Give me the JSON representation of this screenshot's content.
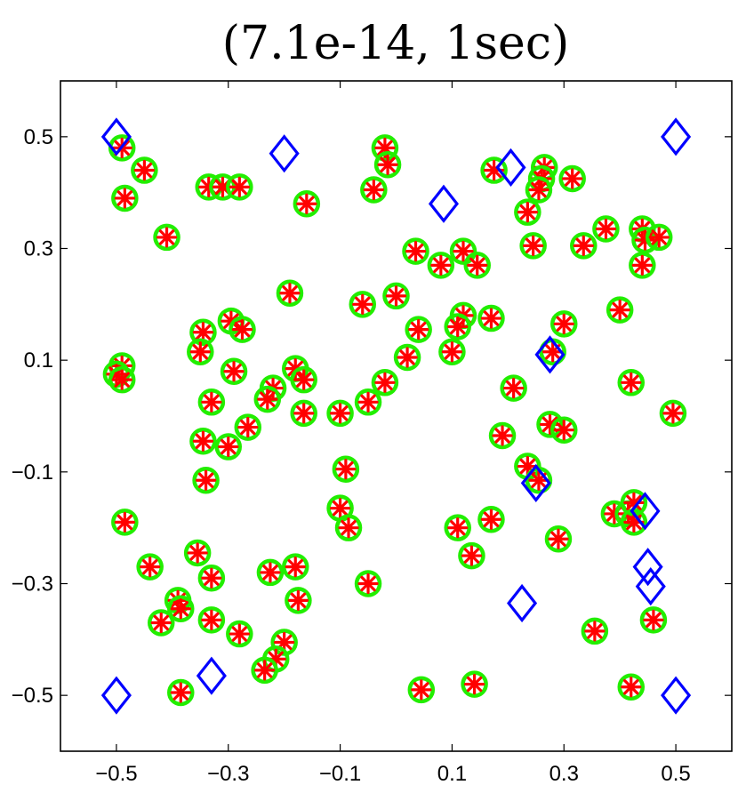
{
  "chart_data": {
    "type": "scatter",
    "title": "(7.1e-14, 1sec)",
    "xlabel": "",
    "ylabel": "",
    "xlim": [
      -0.6,
      0.6
    ],
    "ylim": [
      -0.6,
      0.6
    ],
    "xticks": [
      -0.5,
      -0.3,
      -0.1,
      0.1,
      0.3,
      0.5
    ],
    "yticks": [
      -0.5,
      -0.3,
      -0.1,
      0.1,
      0.3,
      0.5
    ],
    "xtick_labels": [
      "−0.5",
      "−0.3",
      "−0.1",
      "0.1",
      "0.3",
      "0.5"
    ],
    "ytick_labels": [
      "−0.5",
      "−0.3",
      "−0.1",
      "0.1",
      "0.3",
      "0.5"
    ],
    "grid": false,
    "colors": {
      "circle": "#22ee00",
      "star": "#ff0000",
      "diamond": "#0000ff"
    },
    "series": [
      {
        "marker": "diamond",
        "color": "#0000ff",
        "points": [
          [
            -0.5,
            0.5
          ],
          [
            -0.2,
            0.47
          ],
          [
            0.085,
            0.38
          ],
          [
            0.205,
            0.445
          ],
          [
            0.5,
            0.5
          ],
          [
            0.275,
            0.11
          ],
          [
            0.25,
            -0.12
          ],
          [
            0.445,
            -0.17
          ],
          [
            0.45,
            -0.27
          ],
          [
            0.455,
            -0.305
          ],
          [
            0.225,
            -0.335
          ],
          [
            -0.5,
            -0.5
          ],
          [
            -0.33,
            -0.465
          ],
          [
            0.5,
            -0.5
          ]
        ]
      },
      {
        "marker": "circle-star",
        "color": "#ff0000",
        "points": [
          [
            -0.49,
            0.48
          ],
          [
            -0.45,
            0.44
          ],
          [
            -0.485,
            0.39
          ],
          [
            -0.41,
            0.32
          ],
          [
            -0.335,
            0.41
          ],
          [
            -0.31,
            0.41
          ],
          [
            -0.28,
            0.41
          ],
          [
            -0.16,
            0.38
          ],
          [
            -0.02,
            0.48
          ],
          [
            -0.015,
            0.45
          ],
          [
            -0.04,
            0.405
          ],
          [
            0.175,
            0.44
          ],
          [
            0.265,
            0.445
          ],
          [
            0.26,
            0.425
          ],
          [
            0.255,
            0.405
          ],
          [
            0.315,
            0.425
          ],
          [
            0.235,
            0.365
          ],
          [
            0.245,
            0.305
          ],
          [
            0.335,
            0.305
          ],
          [
            0.375,
            0.335
          ],
          [
            0.44,
            0.335
          ],
          [
            0.445,
            0.315
          ],
          [
            0.47,
            0.32
          ],
          [
            0.44,
            0.27
          ],
          [
            0.08,
            0.27
          ],
          [
            0.035,
            0.295
          ],
          [
            0.12,
            0.295
          ],
          [
            0.145,
            0.27
          ],
          [
            0.0,
            0.215
          ],
          [
            -0.06,
            0.2
          ],
          [
            -0.19,
            0.22
          ],
          [
            -0.295,
            0.17
          ],
          [
            -0.275,
            0.155
          ],
          [
            -0.345,
            0.15
          ],
          [
            -0.35,
            0.115
          ],
          [
            0.12,
            0.18
          ],
          [
            0.11,
            0.16
          ],
          [
            0.17,
            0.175
          ],
          [
            0.3,
            0.165
          ],
          [
            0.4,
            0.19
          ],
          [
            0.04,
            0.155
          ],
          [
            0.1,
            0.115
          ],
          [
            0.02,
            0.105
          ],
          [
            -0.49,
            0.09
          ],
          [
            -0.5,
            0.075
          ],
          [
            -0.49,
            0.065
          ],
          [
            -0.29,
            0.08
          ],
          [
            -0.18,
            0.085
          ],
          [
            -0.165,
            0.065
          ],
          [
            -0.22,
            0.05
          ],
          [
            -0.23,
            0.03
          ],
          [
            -0.33,
            0.025
          ],
          [
            -0.02,
            0.06
          ],
          [
            0.28,
            0.115
          ],
          [
            0.21,
            0.05
          ],
          [
            0.42,
            0.06
          ],
          [
            -0.1,
            0.005
          ],
          [
            -0.05,
            0.025
          ],
          [
            -0.165,
            0.005
          ],
          [
            -0.265,
            -0.02
          ],
          [
            -0.3,
            -0.055
          ],
          [
            -0.345,
            -0.045
          ],
          [
            0.19,
            -0.035
          ],
          [
            0.275,
            -0.015
          ],
          [
            0.3,
            -0.025
          ],
          [
            0.495,
            0.005
          ],
          [
            -0.09,
            -0.095
          ],
          [
            -0.34,
            -0.115
          ],
          [
            0.235,
            -0.09
          ],
          [
            0.255,
            -0.115
          ],
          [
            -0.485,
            -0.19
          ],
          [
            -0.1,
            -0.165
          ],
          [
            -0.085,
            -0.2
          ],
          [
            0.11,
            -0.2
          ],
          [
            0.17,
            -0.185
          ],
          [
            0.135,
            -0.25
          ],
          [
            0.29,
            -0.22
          ],
          [
            0.39,
            -0.175
          ],
          [
            0.415,
            -0.175
          ],
          [
            0.425,
            -0.155
          ],
          [
            0.425,
            -0.19
          ],
          [
            -0.44,
            -0.27
          ],
          [
            -0.355,
            -0.245
          ],
          [
            -0.33,
            -0.29
          ],
          [
            -0.225,
            -0.28
          ],
          [
            -0.18,
            -0.27
          ],
          [
            -0.175,
            -0.33
          ],
          [
            -0.05,
            -0.3
          ],
          [
            -0.39,
            -0.33
          ],
          [
            -0.385,
            -0.345
          ],
          [
            -0.42,
            -0.37
          ],
          [
            -0.33,
            -0.365
          ],
          [
            -0.28,
            -0.39
          ],
          [
            -0.2,
            -0.405
          ],
          [
            -0.215,
            -0.435
          ],
          [
            -0.235,
            -0.455
          ],
          [
            -0.385,
            -0.495
          ],
          [
            0.045,
            -0.49
          ],
          [
            0.14,
            -0.48
          ],
          [
            0.355,
            -0.385
          ],
          [
            0.46,
            -0.365
          ],
          [
            0.42,
            -0.485
          ]
        ]
      }
    ]
  }
}
